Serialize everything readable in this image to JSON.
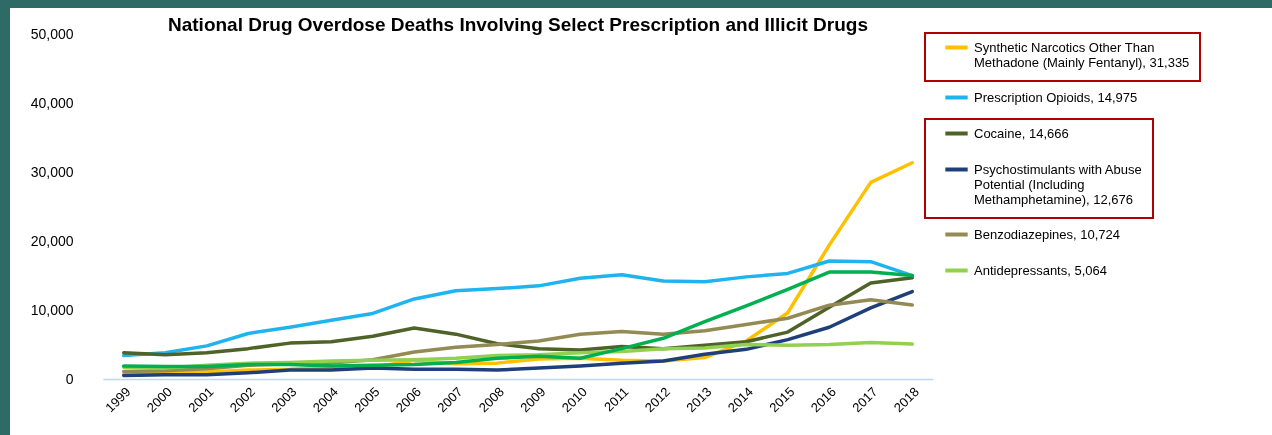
{
  "chart_data": {
    "type": "line",
    "title": "National Drug Overdose Deaths Involving  Select Prescription and Illicit Drugs",
    "categories": [
      "1999",
      "2000",
      "2001",
      "2002",
      "2003",
      "2004",
      "2005",
      "2006",
      "2007",
      "2008",
      "2009",
      "2010",
      "2011",
      "2012",
      "2013",
      "2014",
      "2015",
      "2016",
      "2017",
      "2018"
    ],
    "ylim": [
      0,
      50000
    ],
    "yticks": [
      0,
      {
        "value": 10000,
        "label": "10,000"
      },
      {
        "value": 20000,
        "label": "20,000"
      },
      {
        "value": 30000,
        "label": "30,000"
      },
      {
        "value": 40000,
        "label": "40,000"
      },
      {
        "value": 50000,
        "label": "50,000"
      }
    ],
    "grid": false,
    "legend": "right",
    "marker": "none",
    "line_style": "solid",
    "series": [
      {
        "name": "Synthetic Narcotics Other Than Methadone (Mainly Fentanyl), 31,335",
        "color": "#ffc000",
        "values": [
          700,
          800,
          1000,
          1300,
          1400,
          1700,
          1700,
          2700,
          2200,
          2300,
          2900,
          3000,
          2700,
          2600,
          3100,
          5500,
          9600,
          19400,
          28500,
          31335
        ]
      },
      {
        "name": "Prescription Opioids, 14,975",
        "color": "#1fb4f0",
        "values": [
          3400,
          3800,
          4800,
          6600,
          7500,
          8500,
          9500,
          11600,
          12800,
          13100,
          13500,
          14600,
          15100,
          14200,
          14100,
          14800,
          15300,
          17100,
          17000,
          14975
        ]
      },
      {
        "name": "Cocaine, 14,666",
        "color": "#4f6228",
        "values": [
          3800,
          3500,
          3800,
          4400,
          5200,
          5400,
          6200,
          7400,
          6500,
          5100,
          4400,
          4200,
          4700,
          4400,
          4900,
          5400,
          6800,
          10400,
          13900,
          14666
        ]
      },
      {
        "name": "Psychostimulants with Abuse Potential (Including Methamphetamine), 12,676",
        "color": "#1f3f7a",
        "values": [
          500,
          600,
          600,
          900,
          1300,
          1300,
          1600,
          1400,
          1400,
          1300,
          1600,
          1900,
          2300,
          2600,
          3600,
          4300,
          5700,
          7500,
          10300,
          12676
        ]
      },
      {
        "name": "Benzodiazepines, 10,724",
        "color": "#948a54",
        "values": [
          1100,
          1200,
          1500,
          2000,
          2200,
          2300,
          2800,
          3900,
          4600,
          5000,
          5500,
          6500,
          6900,
          6500,
          7000,
          7900,
          8800,
          10700,
          11500,
          10724
        ]
      },
      {
        "name": "Antidepressants, 5,064",
        "color": "#92d050",
        "values": [
          1700,
          1600,
          2000,
          2300,
          2400,
          2600,
          2700,
          2800,
          3000,
          3400,
          3500,
          3800,
          4000,
          4400,
          4500,
          5000,
          4900,
          5000,
          5300,
          5064
        ]
      },
      {
        "color": "#00b050",
        "values": [
          1900,
          1800,
          1800,
          2100,
          2100,
          1900,
          2000,
          2100,
          2400,
          3000,
          3300,
          3000,
          4400,
          5900,
          8300,
          10600,
          13000,
          15500,
          15500,
          15000
        ]
      }
    ]
  }
}
